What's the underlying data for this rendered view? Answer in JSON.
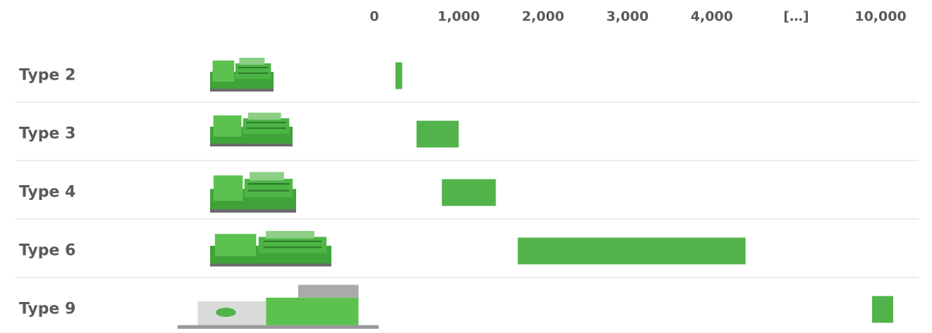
{
  "chart_data": {
    "type": "range-bar",
    "categories": [
      "Type 2",
      "Type 3",
      "Type 4",
      "Type 6",
      "Type 9"
    ],
    "values": [
      [
        250,
        330
      ],
      [
        500,
        1000
      ],
      [
        800,
        1440
      ],
      [
        1700,
        4400
      ],
      [
        9900,
        10150
      ]
    ],
    "color": "#52b34a",
    "xlim": [
      0,
      10500
    ],
    "xticks": [
      0,
      {
        "value": 1000,
        "label": "1,000"
      },
      {
        "value": 2000,
        "label": "2,000"
      },
      {
        "value": 3000,
        "label": "3,000"
      },
      {
        "value": 4000,
        "label": "4,000"
      },
      {
        "value": 10000,
        "label": "10,000"
      }
    ],
    "axis_break": {
      "label": "[…]"
    },
    "grid": false
  }
}
